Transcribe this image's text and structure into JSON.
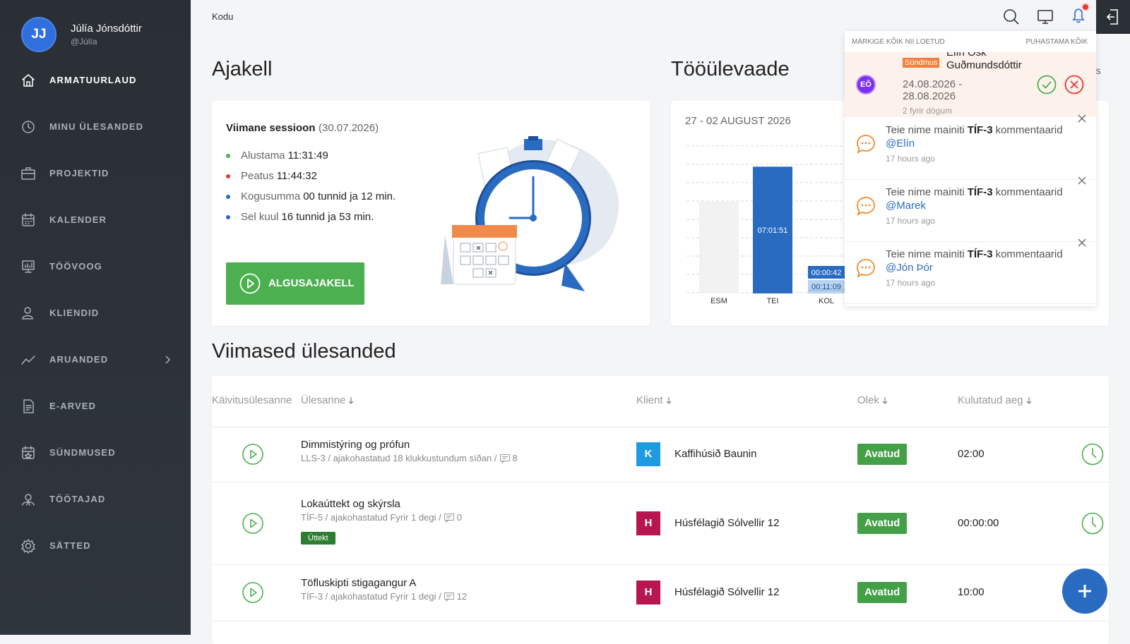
{
  "user": {
    "initials": "JJ",
    "name": "Júlía Jónsdóttir",
    "handle": "@Júlía"
  },
  "nav": [
    {
      "label": "ARMATUURLAUD",
      "active": true
    },
    {
      "label": "MINU ÜLESANDED"
    },
    {
      "label": "PROJEKTID"
    },
    {
      "label": "KALENDER"
    },
    {
      "label": "TÖÖVOOG"
    },
    {
      "label": "KLIENDID"
    },
    {
      "label": "ARUANDED",
      "submenu": true
    },
    {
      "label": "E-ARVED"
    },
    {
      "label": "SÜNDMUSED"
    },
    {
      "label": "TÖÖTAJAD"
    },
    {
      "label": "SÄTTED"
    }
  ],
  "breadcrumb": "Kodu",
  "clock": {
    "title": "Ajakell",
    "session_label": "Viimane sessioon",
    "session_date": "(30.07.2026)",
    "items": [
      {
        "label": "Alustama",
        "value": "11:31:49",
        "color": "#4caf50"
      },
      {
        "label": "Peatus",
        "value": "11:44:32",
        "color": "#e53935"
      },
      {
        "label": "Kogusumma",
        "value": "00 tunnid ja 12 min.",
        "color": "#2a6bc2"
      },
      {
        "label": "Sel kuul",
        "value": "16 tunnid ja 53 min.",
        "color": "#2a6bc2"
      }
    ],
    "button": "ALGUSAJAKELL"
  },
  "overview": {
    "title": "Tööülevaade",
    "link_fragment": "tes",
    "week": "27 - 02 AUGUST 2026",
    "days": [
      {
        "name": "ESM",
        "segments": []
      },
      {
        "name": "TEI",
        "segments": [
          {
            "seconds": 25311,
            "label": "07:01:51",
            "color": "#2a6bc2"
          }
        ]
      },
      {
        "name": "KOL",
        "segments": [
          {
            "seconds": 669,
            "label": "00:11:09",
            "color": "#b9d3ee"
          },
          {
            "seconds": 42,
            "label": "00:00:42",
            "color": "#2a6bc2"
          }
        ]
      }
    ]
  },
  "notifications": {
    "mark_all": "MÄRKIGE KÕIK NII LOETUD",
    "clear_all": "PUHASTAMA KÕIK",
    "event": {
      "initials": "EÕ",
      "badge": "Sündmus",
      "name": "Elín Ósk Guðmundsdóttir",
      "dates": "24.08.2026 - 28.08.2026",
      "ago": "2 fyrir dögum"
    },
    "mentions": [
      {
        "prefix": "Teie nime mainiti",
        "ref": "TÍF-3",
        "suffix": "kommentaarid",
        "user": "@Elín",
        "time": "17 hours ago"
      },
      {
        "prefix": "Teie nime mainiti",
        "ref": "TÍF-3",
        "suffix": "kommentaarid",
        "user": "@Marek",
        "time": "17 hours ago"
      },
      {
        "prefix": "Teie nime mainiti",
        "ref": "TÍF-3",
        "suffix": "kommentaarid",
        "user": "@Jón Þór",
        "time": "17 hours ago"
      }
    ]
  },
  "tasks": {
    "title": "Viimased ülesanded",
    "columns": [
      "Käivitusülesanne",
      "Ülesanne",
      "Klient",
      "Olek",
      "Kulutatud aeg"
    ],
    "rows": [
      {
        "name": "Dimmistýring og prófun",
        "meta": "LLS-3 / ajakohastatud 18 klukkustundum síðan /",
        "comments": 8,
        "client_initial": "K",
        "client_color": "#1e9be0",
        "client": "Kaffihúsið Baunin",
        "status": "Avatud",
        "time": "02:00"
      },
      {
        "name": "Lokaúttekt og skýrsla",
        "meta": "TÍF-5 / ajakohastatud Fyrir 1 degi /",
        "comments": 0,
        "tag": "Úttekt",
        "client_initial": "H",
        "client_color": "#b5174e",
        "client": "Húsfélagið Sólvellir 12",
        "status": "Avatud",
        "time": "00:00:00"
      },
      {
        "name": "Töfluskipti stigagangur A",
        "meta": "TÍF-3 / ajakohastatud Fyrir 1 degi /",
        "comments": 12,
        "client_initial": "H",
        "client_color": "#b5174e",
        "client": "Húsfélagið Sólvellir 12",
        "status": "Avatud",
        "time": "10:00"
      }
    ]
  }
}
